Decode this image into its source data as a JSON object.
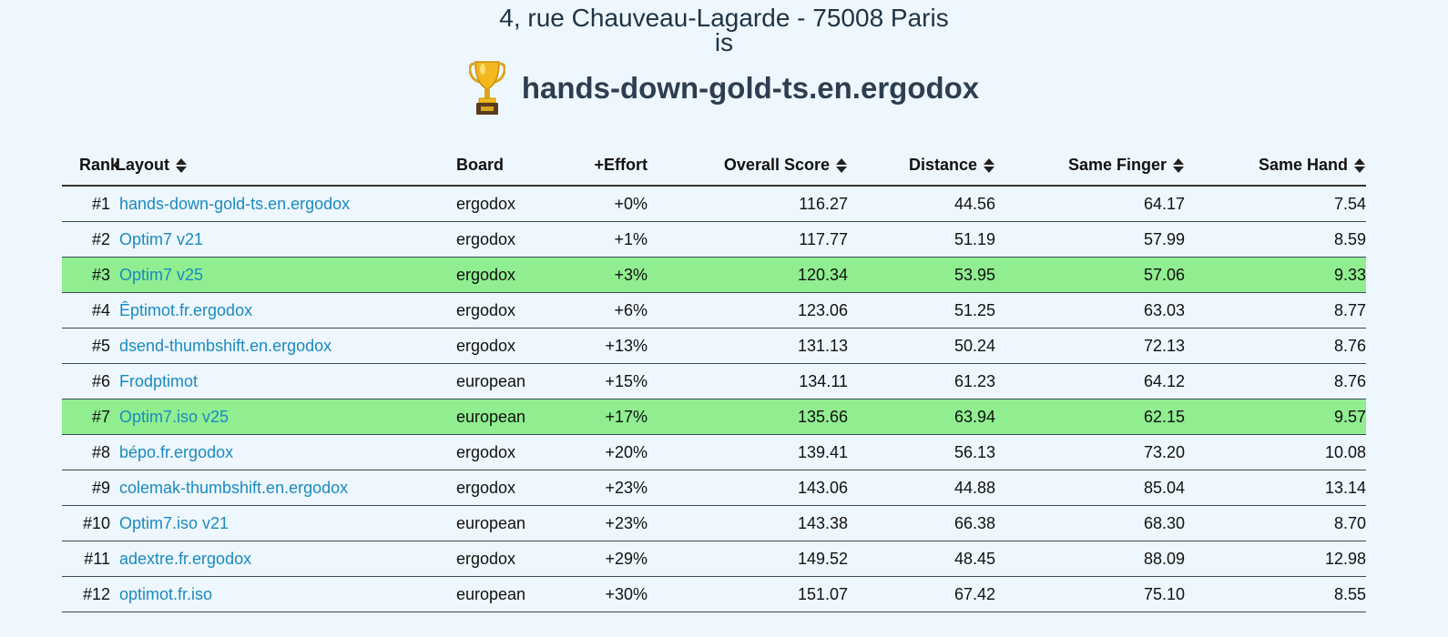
{
  "header": {
    "address": "4, rue Chauveau-Lagarde - 75008 Paris",
    "is_label": "is",
    "winner": "hands-down-gold-ts.en.ergodox",
    "trophy_icon": "trophy-icon"
  },
  "table": {
    "columns": {
      "rank": "Rank",
      "layout": "Layout",
      "board": "Board",
      "effort": "+Effort",
      "score": "Overall Score",
      "distance": "Distance",
      "same_finger": "Same Finger",
      "same_hand": "Same Hand"
    },
    "highlight_color": "#90ee90",
    "link_color": "#1a8abf",
    "rows": [
      {
        "rank": "#1",
        "layout": "hands-down-gold-ts.en.ergodox",
        "board": "ergodox",
        "effort": "+0%",
        "score": "116.27",
        "distance": "44.56",
        "same_finger": "64.17",
        "same_hand": "7.54",
        "highlight": false
      },
      {
        "rank": "#2",
        "layout": "Optim7 v21",
        "board": "ergodox",
        "effort": "+1%",
        "score": "117.77",
        "distance": "51.19",
        "same_finger": "57.99",
        "same_hand": "8.59",
        "highlight": false
      },
      {
        "rank": "#3",
        "layout": "Optim7 v25",
        "board": "ergodox",
        "effort": "+3%",
        "score": "120.34",
        "distance": "53.95",
        "same_finger": "57.06",
        "same_hand": "9.33",
        "highlight": true
      },
      {
        "rank": "#4",
        "layout": "Êptimot.fr.ergodox",
        "board": "ergodox",
        "effort": "+6%",
        "score": "123.06",
        "distance": "51.25",
        "same_finger": "63.03",
        "same_hand": "8.77",
        "highlight": false
      },
      {
        "rank": "#5",
        "layout": "dsend-thumbshift.en.ergodox",
        "board": "ergodox",
        "effort": "+13%",
        "score": "131.13",
        "distance": "50.24",
        "same_finger": "72.13",
        "same_hand": "8.76",
        "highlight": false
      },
      {
        "rank": "#6",
        "layout": "Frodptimot",
        "board": "european",
        "effort": "+15%",
        "score": "134.11",
        "distance": "61.23",
        "same_finger": "64.12",
        "same_hand": "8.76",
        "highlight": false
      },
      {
        "rank": "#7",
        "layout": "Optim7.iso v25",
        "board": "european",
        "effort": "+17%",
        "score": "135.66",
        "distance": "63.94",
        "same_finger": "62.15",
        "same_hand": "9.57",
        "highlight": true
      },
      {
        "rank": "#8",
        "layout": "bépo.fr.ergodox",
        "board": "ergodox",
        "effort": "+20%",
        "score": "139.41",
        "distance": "56.13",
        "same_finger": "73.20",
        "same_hand": "10.08",
        "highlight": false
      },
      {
        "rank": "#9",
        "layout": "colemak-thumbshift.en.ergodox",
        "board": "ergodox",
        "effort": "+23%",
        "score": "143.06",
        "distance": "44.88",
        "same_finger": "85.04",
        "same_hand": "13.14",
        "highlight": false
      },
      {
        "rank": "#10",
        "layout": "Optim7.iso v21",
        "board": "european",
        "effort": "+23%",
        "score": "143.38",
        "distance": "66.38",
        "same_finger": "68.30",
        "same_hand": "8.70",
        "highlight": false
      },
      {
        "rank": "#11",
        "layout": "adextre.fr.ergodox",
        "board": "ergodox",
        "effort": "+29%",
        "score": "149.52",
        "distance": "48.45",
        "same_finger": "88.09",
        "same_hand": "12.98",
        "highlight": false
      },
      {
        "rank": "#12",
        "layout": "optimot.fr.iso",
        "board": "european",
        "effort": "+30%",
        "score": "151.07",
        "distance": "67.42",
        "same_finger": "75.10",
        "same_hand": "8.55",
        "highlight": false
      }
    ]
  }
}
